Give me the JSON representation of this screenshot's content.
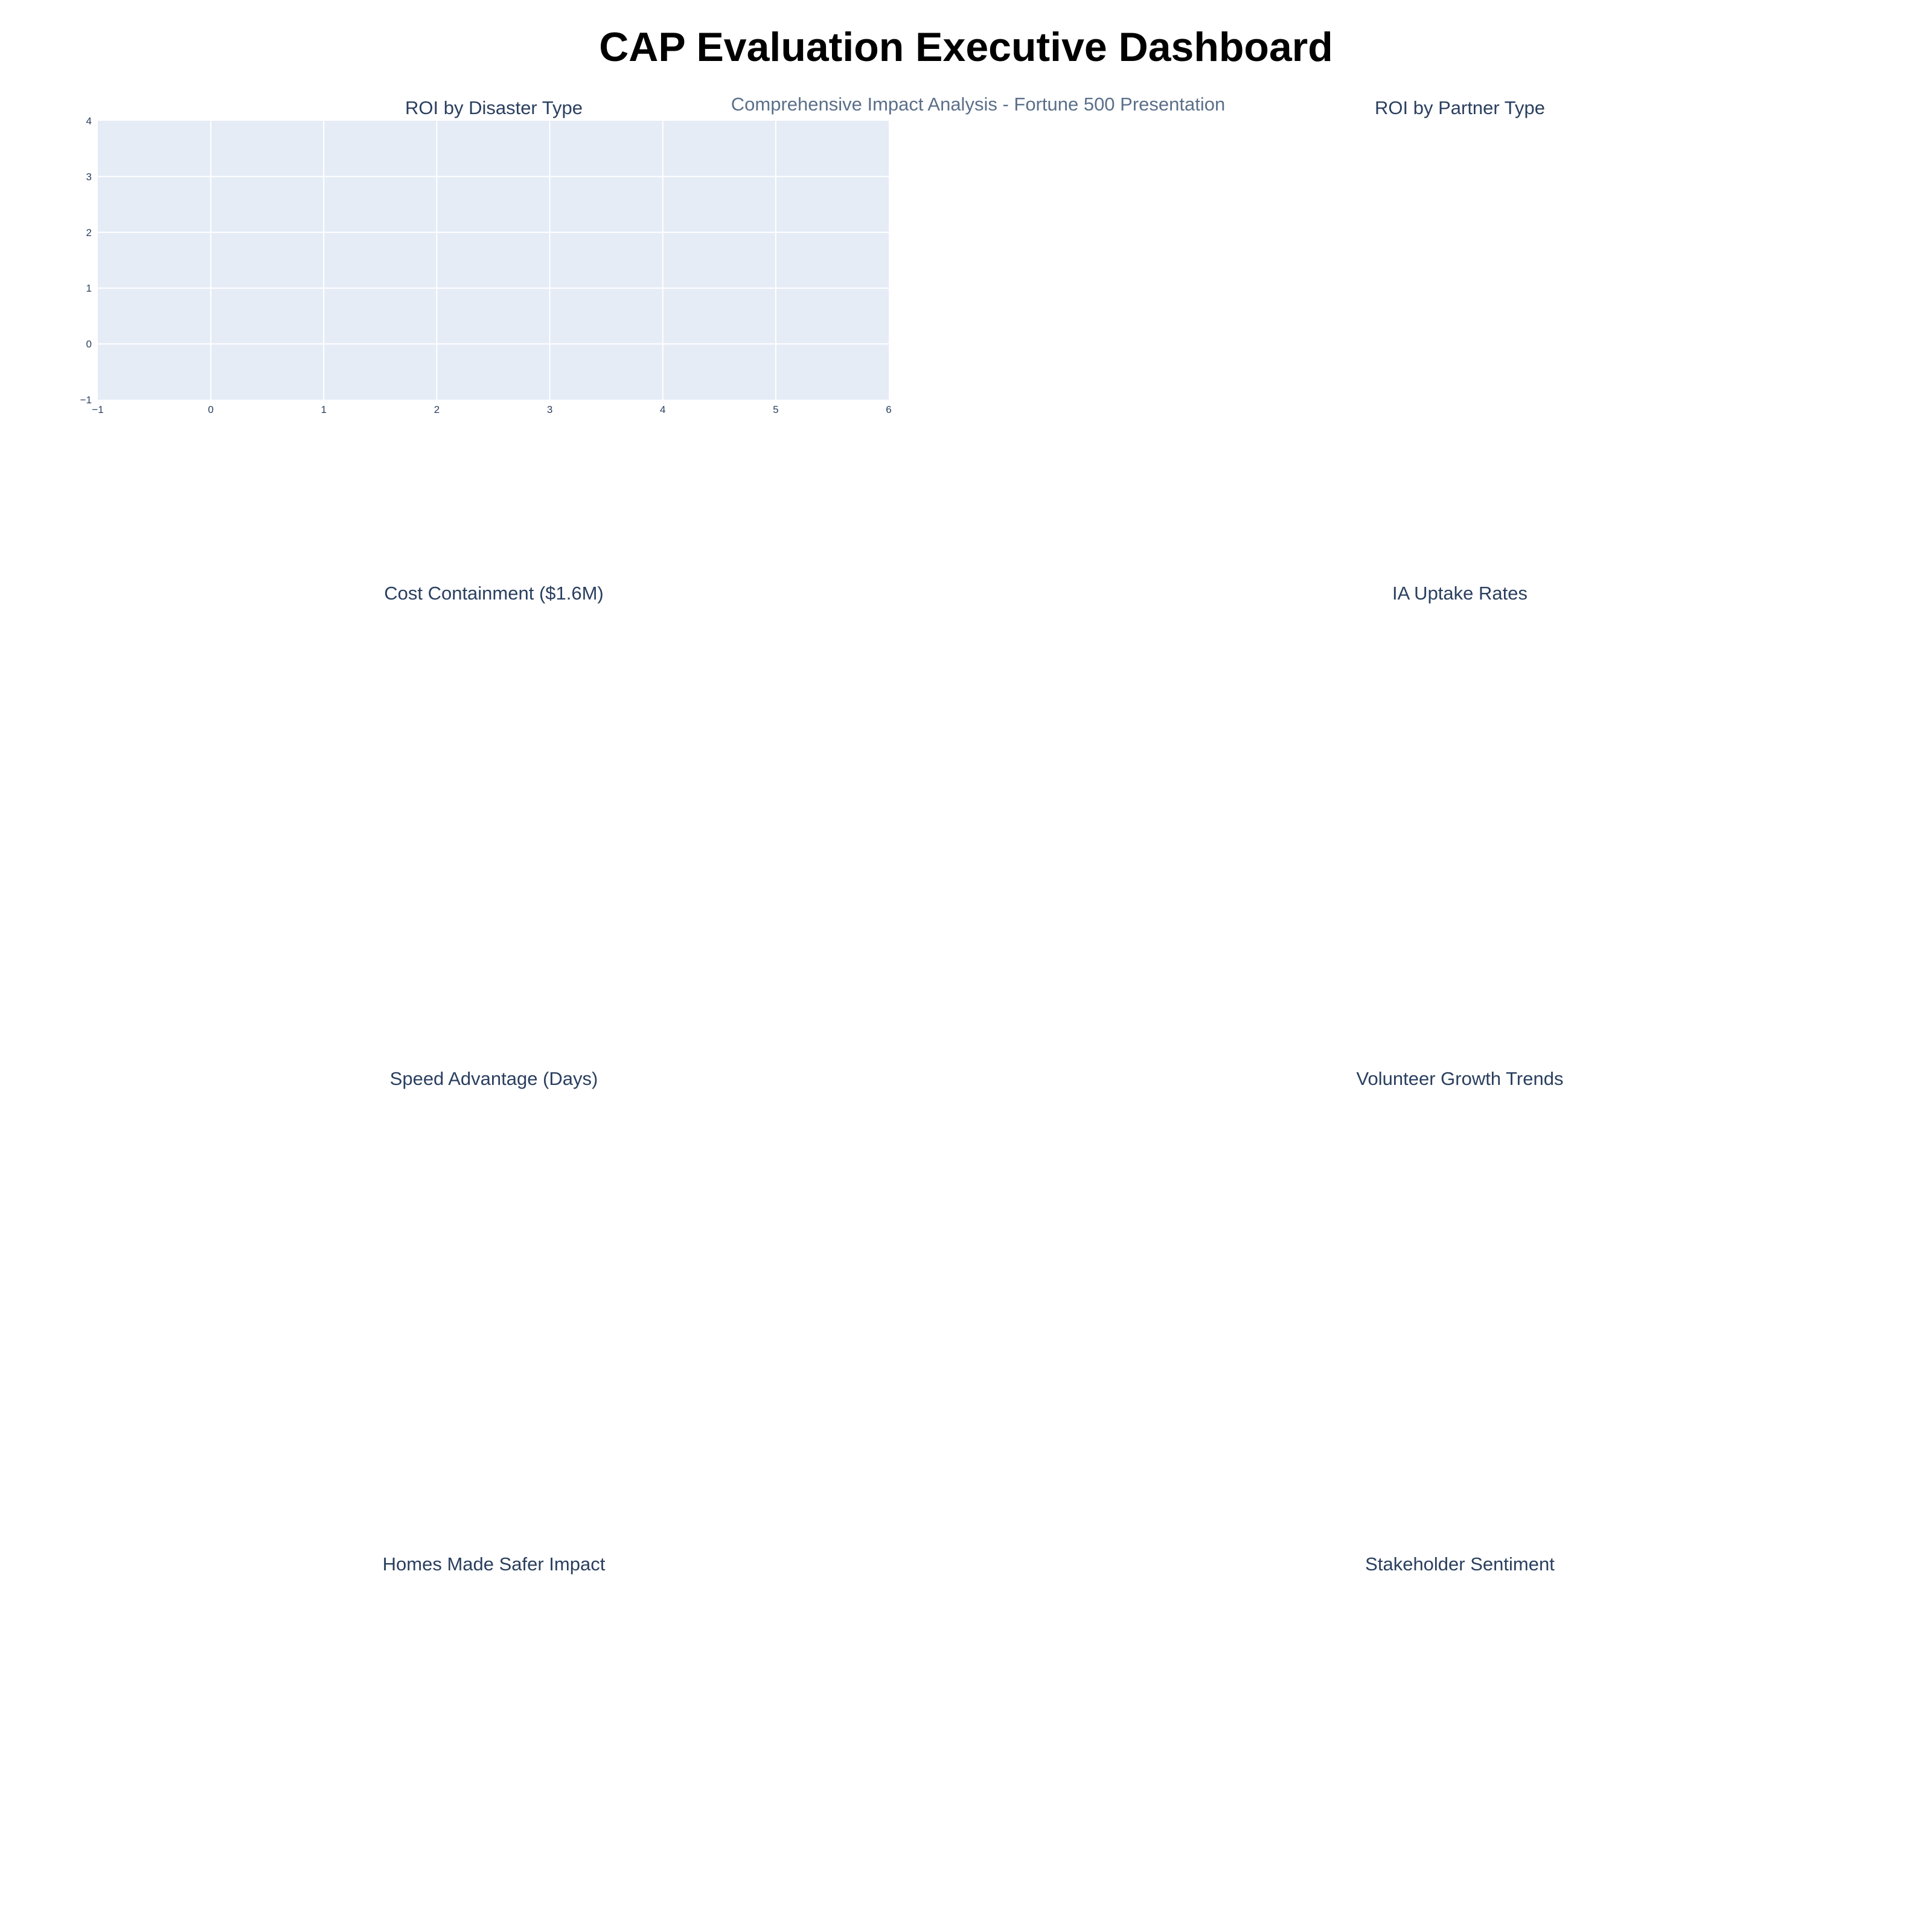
{
  "dashboard": {
    "title": "CAP Evaluation Executive Dashboard",
    "subtitle": "Comprehensive Impact Analysis - Fortune 500 Presentation"
  },
  "panels": [
    {
      "title": "ROI by Disaster Type"
    },
    {
      "title": "ROI by Partner Type"
    },
    {
      "title": "Cost Containment ($1.6M)"
    },
    {
      "title": "IA Uptake Rates"
    },
    {
      "title": "Speed Advantage (Days)"
    },
    {
      "title": "Volunteer Growth Trends"
    },
    {
      "title": "Homes Made Safer Impact"
    },
    {
      "title": "Stakeholder Sentiment"
    }
  ],
  "chart_data": [
    {
      "type": "bar",
      "title": "ROI by Disaster Type",
      "xlabel": "",
      "ylabel": "",
      "xlim": [
        -1,
        6
      ],
      "ylim": [
        -1,
        4
      ],
      "x_ticks": [
        -1,
        0,
        1,
        2,
        3,
        4,
        5,
        6
      ],
      "y_ticks": [
        -1,
        0,
        1,
        2,
        3,
        4
      ],
      "grid": true,
      "plot_background": "#e5ecf6",
      "categories": [],
      "values": []
    },
    {
      "type": "bar",
      "title": "ROI by Partner Type",
      "categories": [],
      "values": []
    },
    {
      "type": "bar",
      "title": "Cost Containment ($1.6M)",
      "categories": [],
      "values": []
    },
    {
      "type": "bar",
      "title": "IA Uptake Rates",
      "categories": [],
      "values": []
    },
    {
      "type": "bar",
      "title": "Speed Advantage (Days)",
      "categories": [],
      "values": []
    },
    {
      "type": "line",
      "title": "Volunteer Growth Trends",
      "x": [],
      "series": []
    },
    {
      "type": "bar",
      "title": "Homes Made Safer Impact",
      "categories": [],
      "values": []
    },
    {
      "type": "pie",
      "title": "Stakeholder Sentiment",
      "categories": [],
      "values": []
    }
  ],
  "colors": {
    "title": "#000000",
    "subtitle": "#5b6f8a",
    "panel_title": "#2a3f5f",
    "plot_background": "#e5ecf6",
    "grid": "#ffffff"
  }
}
